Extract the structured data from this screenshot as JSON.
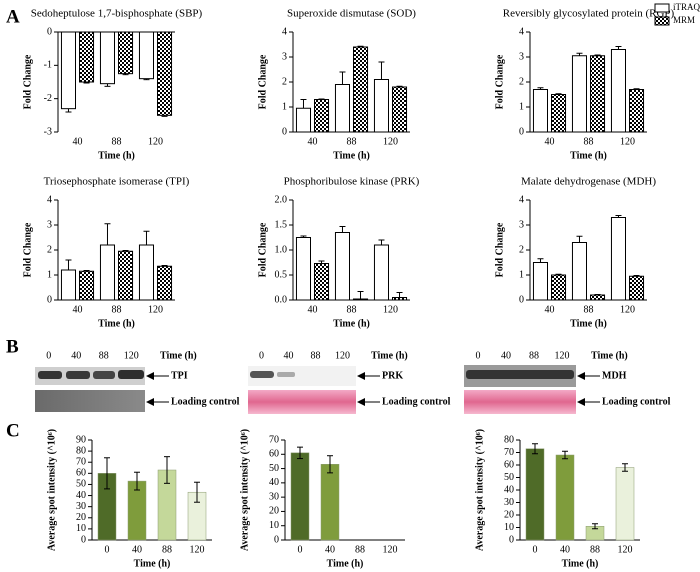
{
  "panels": [
    "A",
    "B",
    "C"
  ],
  "chart_data": [
    {
      "type": "bar",
      "title": "Sedoheptulose 1,7-bisphosphate (SBP)",
      "ylabel": "Fold Change",
      "xlabel": "Time (h)",
      "categories": [
        "40",
        "88",
        "120"
      ],
      "errorbars": "outward",
      "series": [
        {
          "name": "iTRAQ",
          "color": "#ffffff",
          "values": [
            -2.3,
            -1.55,
            -1.4
          ],
          "errors": [
            0.1,
            0.08,
            0.03
          ]
        },
        {
          "name": "MRM",
          "color": "#000000",
          "pattern": "checker",
          "values": [
            -1.5,
            -1.25,
            -2.5
          ],
          "errors": [
            0.03,
            0.03,
            0.03
          ]
        }
      ],
      "ylim": [
        -3,
        0
      ],
      "yticks": [
        -3,
        -2,
        -1,
        0
      ]
    },
    {
      "type": "bar",
      "title": "Superoxide dismutase (SOD)",
      "ylabel": "Fold Change",
      "xlabel": "Time (h)",
      "categories": [
        "40",
        "88",
        "120"
      ],
      "errorbars": "outward",
      "series": [
        {
          "name": "iTRAQ",
          "color": "#ffffff",
          "values": [
            0.95,
            1.9,
            2.1
          ],
          "errors": [
            0.35,
            0.5,
            0.7
          ]
        },
        {
          "name": "MRM",
          "color": "#000000",
          "pattern": "checker",
          "values": [
            1.3,
            3.4,
            1.8
          ],
          "errors": [
            0.02,
            0.03,
            0.03
          ]
        }
      ],
      "ylim": [
        0,
        4
      ],
      "yticks": [
        0,
        1,
        2,
        3,
        4
      ]
    },
    {
      "type": "bar",
      "title": "Reversibly glycosylated protein (RGP)",
      "ylabel": "Fold Change",
      "xlabel": "Time (h)",
      "categories": [
        "40",
        "88",
        "120"
      ],
      "errorbars": "outward",
      "series": [
        {
          "name": "iTRAQ",
          "color": "#ffffff",
          "values": [
            1.7,
            3.05,
            3.3
          ],
          "errors": [
            0.07,
            0.1,
            0.12
          ]
        },
        {
          "name": "MRM",
          "color": "#000000",
          "pattern": "checker",
          "values": [
            1.5,
            3.05,
            1.7
          ],
          "errors": [
            0.03,
            0.03,
            0.03
          ]
        }
      ],
      "ylim": [
        0,
        4
      ],
      "yticks": [
        0,
        1,
        2,
        3,
        4
      ]
    },
    {
      "type": "bar",
      "title": "Triosephosphate isomerase (TPI)",
      "ylabel": "Fold Change",
      "xlabel": "Time (h)",
      "categories": [
        "40",
        "88",
        "120"
      ],
      "errorbars": "outward",
      "series": [
        {
          "name": "iTRAQ",
          "color": "#ffffff",
          "values": [
            1.2,
            2.2,
            2.2
          ],
          "errors": [
            0.4,
            0.85,
            0.55
          ]
        },
        {
          "name": "MRM",
          "color": "#000000",
          "pattern": "checker",
          "values": [
            1.15,
            1.95,
            1.35
          ],
          "errors": [
            0.03,
            0.03,
            0.03
          ]
        }
      ],
      "ylim": [
        0,
        4
      ],
      "yticks": [
        0,
        1,
        2,
        3,
        4
      ]
    },
    {
      "type": "bar",
      "title": "Phosphoribulose kinase (PRK)",
      "ylabel": "Fold Change",
      "xlabel": "Time (h)",
      "categories": [
        "40",
        "88",
        "120"
      ],
      "errorbars": "outward",
      "series": [
        {
          "name": "iTRAQ",
          "color": "#ffffff",
          "values": [
            1.25,
            1.35,
            1.1
          ],
          "errors": [
            0.03,
            0.12,
            0.1
          ]
        },
        {
          "name": "MRM",
          "color": "#000000",
          "pattern": "checker",
          "values": [
            0.73,
            0.02,
            0.05
          ],
          "errors": [
            0.05,
            0.15,
            0.1
          ]
        }
      ],
      "ylim": [
        0,
        2
      ],
      "yticks": [
        {
          "value": 0,
          "label": "0.0"
        },
        {
          "value": 0.5,
          "label": "0.5"
        },
        {
          "value": 1,
          "label": "1.0"
        },
        {
          "value": 1.5,
          "label": "1.5"
        },
        {
          "value": 2,
          "label": "2.0"
        }
      ]
    },
    {
      "type": "bar",
      "title": "Malate dehydrogenase (MDH)",
      "ylabel": "Fold Change",
      "xlabel": "Time (h)",
      "categories": [
        "40",
        "88",
        "120"
      ],
      "errorbars": "outward",
      "series": [
        {
          "name": "iTRAQ",
          "color": "#ffffff",
          "values": [
            1.5,
            2.3,
            3.3
          ],
          "errors": [
            0.15,
            0.25,
            0.08
          ]
        },
        {
          "name": "MRM",
          "color": "#000000",
          "pattern": "checker",
          "values": [
            1.0,
            0.2,
            0.95
          ],
          "errors": [
            0.03,
            0.02,
            0.03
          ]
        }
      ],
      "ylim": [
        0,
        4
      ],
      "yticks": [
        0,
        1,
        2,
        3,
        4
      ]
    },
    {
      "type": "bar",
      "ylabel": "Average spot intensity (^10⁶)",
      "xlabel": "Time (h)",
      "categories": [
        "0",
        "40",
        "88",
        "120"
      ],
      "errorbars": "both",
      "values": [
        60,
        53,
        63,
        43
      ],
      "errors": [
        14,
        8,
        12,
        9
      ],
      "colors": [
        "#4f6b28",
        "#7f9c3c",
        "#c4d89a",
        "#eaf1dc"
      ],
      "ylim": [
        0,
        90
      ],
      "yticks": [
        0,
        10,
        20,
        30,
        40,
        50,
        60,
        70,
        80,
        90
      ]
    },
    {
      "type": "bar",
      "ylabel": "Average spot intensity (^10⁶)",
      "xlabel": "Time (h)",
      "categories": [
        "0",
        "40",
        "88",
        "120"
      ],
      "errorbars": "both",
      "values": [
        61,
        53,
        null,
        null
      ],
      "errors": [
        4,
        6,
        null,
        null
      ],
      "colors": [
        "#4f6b28",
        "#7f9c3c",
        "#c4d89a",
        "#eaf1dc"
      ],
      "ylim": [
        0,
        70
      ],
      "yticks": [
        0,
        10,
        20,
        30,
        40,
        50,
        60,
        70
      ]
    },
    {
      "type": "bar",
      "ylabel": "Average spot intensity (^10⁶)",
      "xlabel": "Time (h)",
      "categories": [
        "0",
        "40",
        "88",
        "120"
      ],
      "errorbars": "both",
      "values": [
        73,
        68,
        11,
        58
      ],
      "errors": [
        4,
        3,
        2,
        3
      ],
      "colors": [
        "#4f6b28",
        "#7f9c3c",
        "#c4d89a",
        "#eaf1dc"
      ],
      "ylim": [
        0,
        80
      ],
      "yticks": [
        0,
        10,
        20,
        30,
        40,
        50,
        60,
        70,
        80
      ]
    }
  ],
  "blots": [
    {
      "lanes": [
        "0",
        "40",
        "88",
        "120"
      ],
      "time_label": "Time (h)",
      "protein": "TPI",
      "loading": "Loading control"
    },
    {
      "lanes": [
        "0",
        "40",
        "88",
        "120"
      ],
      "time_label": "Time (h)",
      "protein": "PRK",
      "loading": "Loading control"
    },
    {
      "lanes": [
        "0",
        "40",
        "88",
        "120"
      ],
      "time_label": "Time (h)",
      "protein": "MDH",
      "loading": "Loading control"
    }
  ]
}
